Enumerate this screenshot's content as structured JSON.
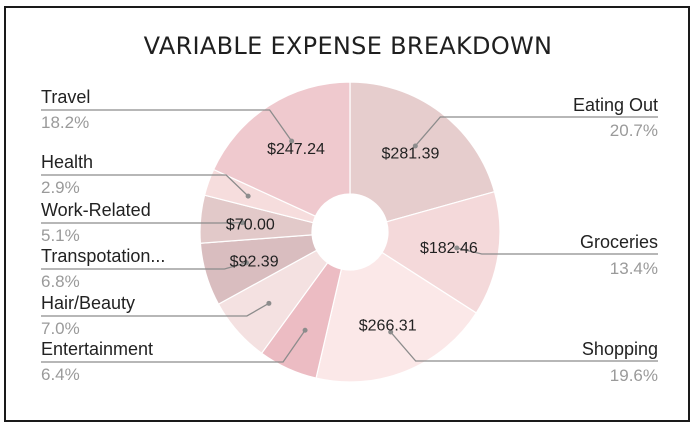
{
  "chart_data": {
    "type": "pie",
    "title": "VARIABLE EXPENSE BREAKDOWN",
    "donut": true,
    "legend": "none",
    "slices": [
      {
        "name": "Eating Out",
        "value": 281.39,
        "value_label": "$281.39",
        "pct_label": "20.7%",
        "color": "#e6cdcd",
        "side": "right"
      },
      {
        "name": "Groceries",
        "value": 182.46,
        "value_label": "$182.46",
        "pct_label": "13.4%",
        "color": "#f4d9da",
        "side": "right"
      },
      {
        "name": "Shopping",
        "value": 266.31,
        "value_label": "$266.31",
        "pct_label": "19.6%",
        "color": "#fbe8e8",
        "side": "right"
      },
      {
        "name": "Entertainment",
        "value": 87.0,
        "value_label": "",
        "pct_label": "6.4%",
        "color": "#ecbcc3",
        "side": "left"
      },
      {
        "name": "Hair/Beauty",
        "value": 95.2,
        "value_label": "",
        "pct_label": "7.0%",
        "color": "#f4e1e1",
        "side": "left"
      },
      {
        "name": "Transpotation...",
        "value": 92.39,
        "value_label": "$92.39",
        "pct_label": "6.8%",
        "color": "#d9bdbf",
        "side": "left"
      },
      {
        "name": "Work-Related",
        "value": 70.0,
        "value_label": "$70.00",
        "pct_label": "5.1%",
        "color": "#e2c9c9",
        "side": "left"
      },
      {
        "name": "Health",
        "value": 39.4,
        "value_label": "",
        "pct_label": "2.9%",
        "color": "#f6dddd",
        "side": "left"
      },
      {
        "name": "Travel",
        "value": 247.24,
        "value_label": "$247.24",
        "pct_label": "18.2%",
        "color": "#efc9ce",
        "side": "left"
      }
    ]
  }
}
